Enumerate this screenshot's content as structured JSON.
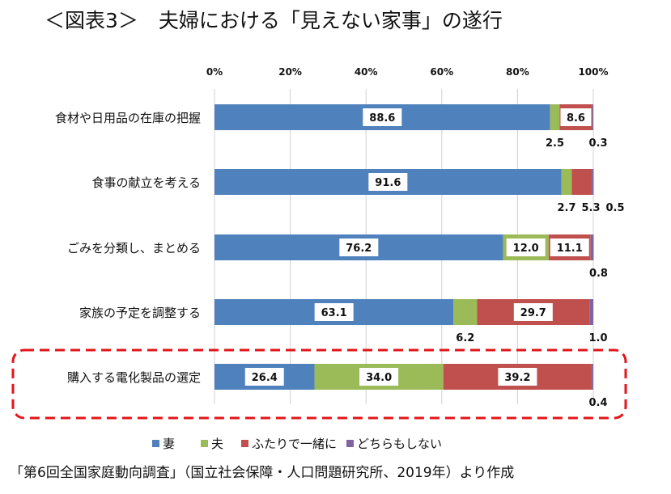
{
  "title": "＜図表3＞　夫婦における「見えない家事」の遂行",
  "source": "「第6回全国家庭動向調査」（国立社会保障・人口問題研究所、2019年）より作成",
  "chart_data": {
    "type": "bar",
    "orientation": "horizontal",
    "stacked": true,
    "title": "＜図表3＞　夫婦における「見えない家事」の遂行",
    "xlim": [
      0,
      100
    ],
    "xticks": [
      "0%",
      "20%",
      "40%",
      "60%",
      "80%",
      "100%"
    ],
    "grid": true,
    "legend_position": "bottom",
    "categories": [
      "食材や日用品の在庫の把握",
      "食事の献立を考える",
      "ごみを分類し、まとめる",
      "家族の予定を調整する",
      "購入する電化製品の選定"
    ],
    "highlighted_category": "購入する電化製品の選定",
    "series": [
      {
        "name": "妻",
        "color": "#4F81BD",
        "values": [
          88.6,
          91.6,
          76.2,
          63.1,
          26.4
        ]
      },
      {
        "name": "夫",
        "color": "#9BBB59",
        "values": [
          2.5,
          2.7,
          12.0,
          6.2,
          34.0
        ]
      },
      {
        "name": "ふたりで一緒に",
        "color": "#C0504D",
        "values": [
          8.6,
          5.3,
          11.1,
          29.7,
          39.2
        ]
      },
      {
        "name": "どちらもしない",
        "color": "#8064A2",
        "values": [
          0.3,
          0.5,
          0.8,
          1.0,
          0.4
        ]
      }
    ]
  }
}
